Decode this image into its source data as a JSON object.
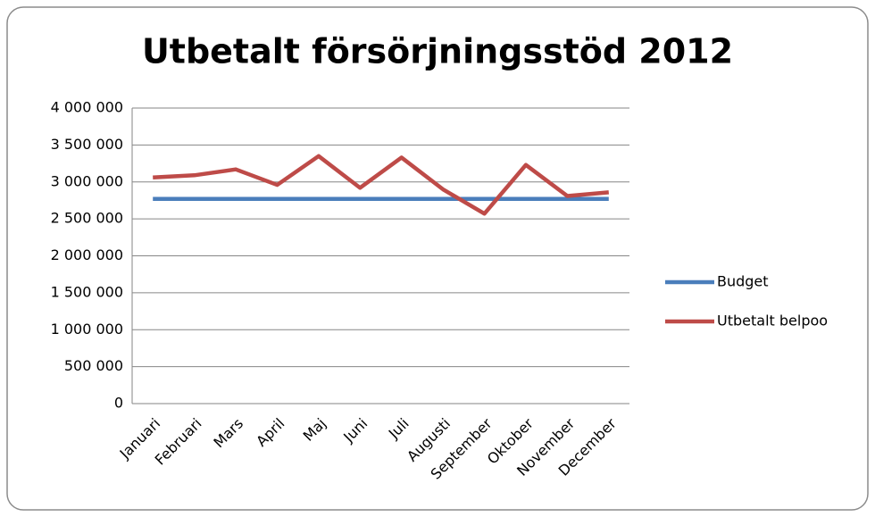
{
  "chart_data": {
    "type": "line",
    "title": "Utbetalt försörjningsstöd 2012",
    "categories": [
      "Januari",
      "Februari",
      "Mars",
      "April",
      "Maj",
      "Juni",
      "Juli",
      "Augusti",
      "September",
      "Oktober",
      "November",
      "December"
    ],
    "series": [
      {
        "name": "Budget",
        "color": "#4a7ebb",
        "values": [
          2770000,
          2770000,
          2770000,
          2770000,
          2770000,
          2770000,
          2770000,
          2770000,
          2770000,
          2770000,
          2770000,
          2770000
        ]
      },
      {
        "name": "Utbetalt belpoo",
        "color": "#be4b48",
        "values": [
          3060000,
          3090000,
          3170000,
          2960000,
          3350000,
          2920000,
          3330000,
          2900000,
          2570000,
          3230000,
          2810000,
          2860000
        ]
      }
    ],
    "ylim": [
      0,
      4000000
    ],
    "yticks": [
      0,
      {
        "value": 500000,
        "label": "500 000"
      },
      {
        "value": 1000000,
        "label": "1 000 000"
      },
      {
        "value": 1500000,
        "label": "1 500 000"
      },
      {
        "value": 2000000,
        "label": "2 000 000"
      },
      {
        "value": 2500000,
        "label": "2 500 000"
      },
      {
        "value": 3000000,
        "label": "3 000 000"
      },
      {
        "value": 3500000,
        "label": "3 500 000"
      },
      {
        "value": 4000000,
        "label": "4 000 000"
      }
    ],
    "grid": true,
    "legend": "right"
  }
}
